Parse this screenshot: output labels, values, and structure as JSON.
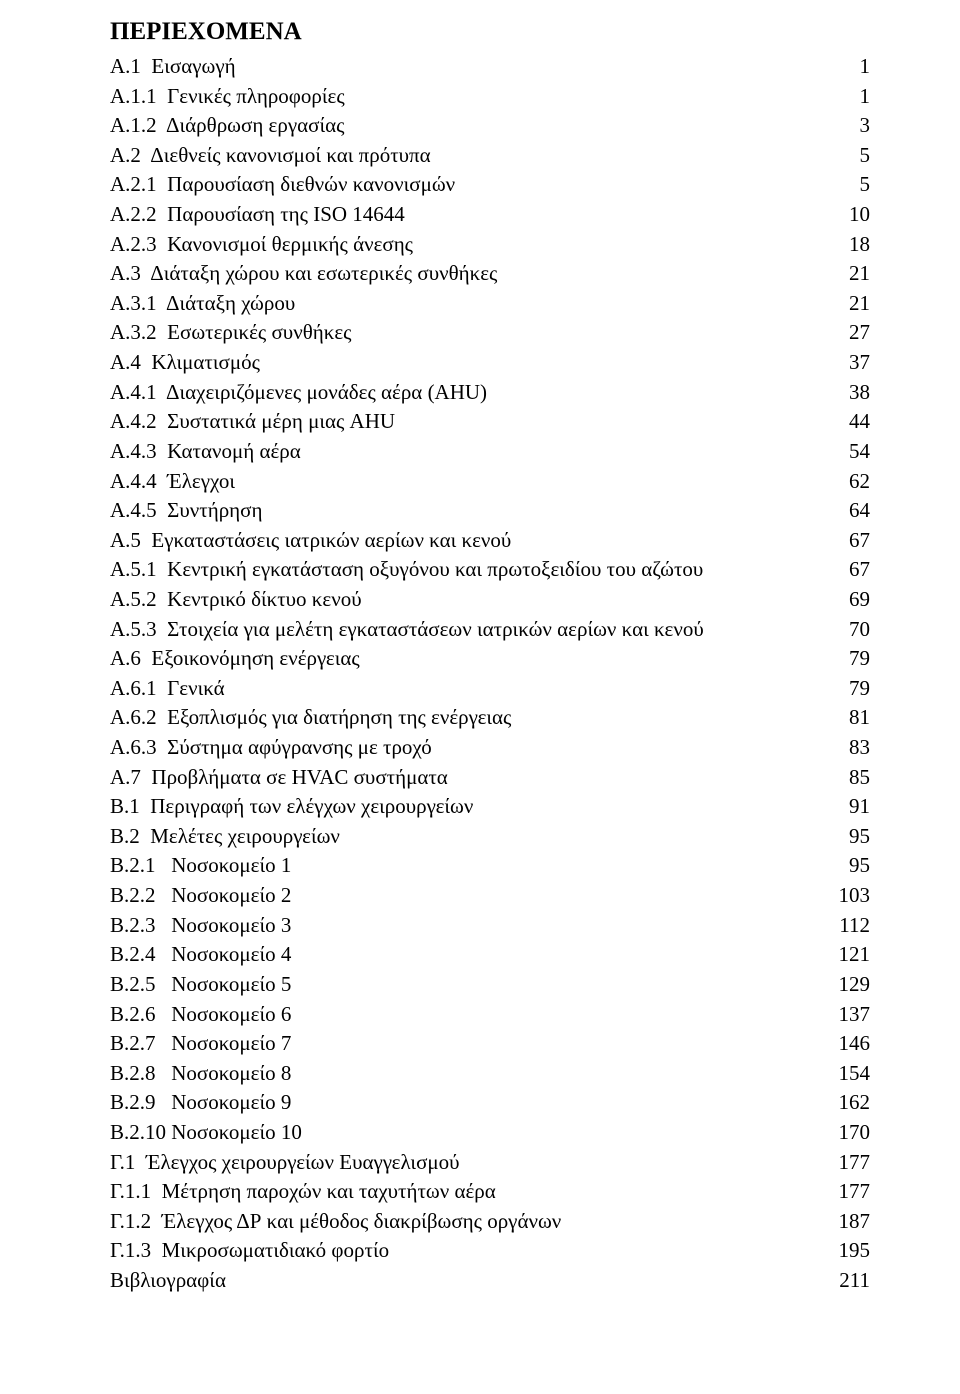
{
  "title": "ΠΕΡΙΕΧΟΜΕΝΑ",
  "font": {
    "family": "Times New Roman",
    "title_size_pt": 25,
    "body_size_pt": 21,
    "title_weight": "bold"
  },
  "colors": {
    "text": "#000000",
    "background": "#ffffff"
  },
  "entries": [
    {
      "label": "Α.1  Εισαγωγή",
      "page": "1",
      "indent": 0
    },
    {
      "label": "Α.1.1  Γενικές πληροφορίες",
      "page": "1",
      "indent": 1
    },
    {
      "label": "Α.1.2  Διάρθρωση εργασίας",
      "page": "3",
      "indent": 1
    },
    {
      "label": "Α.2  Διεθνείς κανονισμοί και πρότυπα",
      "page": "5",
      "indent": 0
    },
    {
      "label": "Α.2.1  Παρουσίαση διεθνών κανονισμών",
      "page": "5",
      "indent": 1
    },
    {
      "label": "Α.2.2  Παρουσίαση της ISO 14644",
      "page": "10",
      "indent": 1
    },
    {
      "label": "Α.2.3  Κανονισμοί θερμικής άνεσης",
      "page": "18",
      "indent": 1
    },
    {
      "label": "Α.3  Διάταξη χώρου και εσωτερικές συνθήκες",
      "page": "21",
      "indent": 0
    },
    {
      "label": "Α.3.1  Διάταξη χώρου",
      "page": "21",
      "indent": 1
    },
    {
      "label": "Α.3.2  Εσωτερικές συνθήκες",
      "page": "27",
      "indent": 1
    },
    {
      "label": "Α.4  Κλιματισμός",
      "page": "37",
      "indent": 0
    },
    {
      "label": "Α.4.1  Διαχειριζόμενες μονάδες αέρα (AHU)",
      "page": "38",
      "indent": 1
    },
    {
      "label": "Α.4.2  Συστατικά μέρη μιας AHU",
      "page": "44",
      "indent": 1
    },
    {
      "label": "Α.4.3  Κατανομή αέρα",
      "page": "54",
      "indent": 1
    },
    {
      "label": "Α.4.4  Έλεγχοι",
      "page": "62",
      "indent": 1
    },
    {
      "label": "Α.4.5  Συντήρηση",
      "page": "64",
      "indent": 1
    },
    {
      "label": "Α.5  Εγκαταστάσεις ιατρικών αερίων και κενού",
      "page": "67",
      "indent": 0
    },
    {
      "label": "Α.5.1  Κεντρική εγκατάσταση οξυγόνου και πρωτοξειδίου του αζώτου",
      "page": "67",
      "indent": 1
    },
    {
      "label": "Α.5.2  Κεντρικό δίκτυο κενού",
      "page": "69",
      "indent": 1
    },
    {
      "label": "Α.5.3  Στοιχεία για μελέτη εγκαταστάσεων ιατρικών αερίων και κενού",
      "page": "70",
      "indent": 1
    },
    {
      "label": "Α.6  Εξοικονόμηση ενέργειας",
      "page": "79",
      "indent": 0
    },
    {
      "label": "Α.6.1  Γενικά",
      "page": "79",
      "indent": 1
    },
    {
      "label": "Α.6.2  Εξοπλισμός για διατήρηση της ενέργειας",
      "page": "81",
      "indent": 1
    },
    {
      "label": "Α.6.3  Σύστημα αφύγρανσης με τροχό",
      "page": "83",
      "indent": 1
    },
    {
      "label": "Α.7  Προβλήματα σε HVAC συστήματα",
      "page": "85",
      "indent": 0
    },
    {
      "label": "Β.1  Περιγραφή των ελέγχων χειρουργείων",
      "page": "91",
      "indent": 0
    },
    {
      "label": "Β.2  Μελέτες χειρουργείων",
      "page": "95",
      "indent": 0
    },
    {
      "label": "Β.2.1   Νοσοκομείο 1",
      "page": "95",
      "indent": 1
    },
    {
      "label": "Β.2.2   Νοσοκομείο 2",
      "page": "103",
      "indent": 1
    },
    {
      "label": "Β.2.3   Νοσοκομείο 3",
      "page": "112",
      "indent": 1
    },
    {
      "label": "Β.2.4   Νοσοκομείο 4",
      "page": "121",
      "indent": 1
    },
    {
      "label": "Β.2.5   Νοσοκομείο 5",
      "page": "129",
      "indent": 1
    },
    {
      "label": "Β.2.6   Νοσοκομείο 6",
      "page": "137",
      "indent": 1
    },
    {
      "label": "Β.2.7   Νοσοκομείο 7",
      "page": "146",
      "indent": 1
    },
    {
      "label": "Β.2.8   Νοσοκομείο 8",
      "page": "154",
      "indent": 1
    },
    {
      "label": "Β.2.9   Νοσοκομείο 9",
      "page": "162",
      "indent": 1
    },
    {
      "label": "Β.2.10 Νοσοκομείο 10",
      "page": "170",
      "indent": 1
    },
    {
      "label": "Γ.1  Έλεγχος χειρουργείων Ευαγγελισμού",
      "page": "177",
      "indent": 0
    },
    {
      "label": "Γ.1.1  Μέτρηση παροχών και ταχυτήτων αέρα",
      "page": "177",
      "indent": 1
    },
    {
      "label": "Γ.1.2  Έλεγχος ΔΡ και μέθοδος διακρίβωσης οργάνων",
      "page": "187",
      "indent": 1
    },
    {
      "label": "Γ.1.3  Μικροσωματιδιακό φορτίο",
      "page": "195",
      "indent": 1
    },
    {
      "label": "Βιβλιογραφία",
      "page": "211",
      "indent": 0
    }
  ]
}
